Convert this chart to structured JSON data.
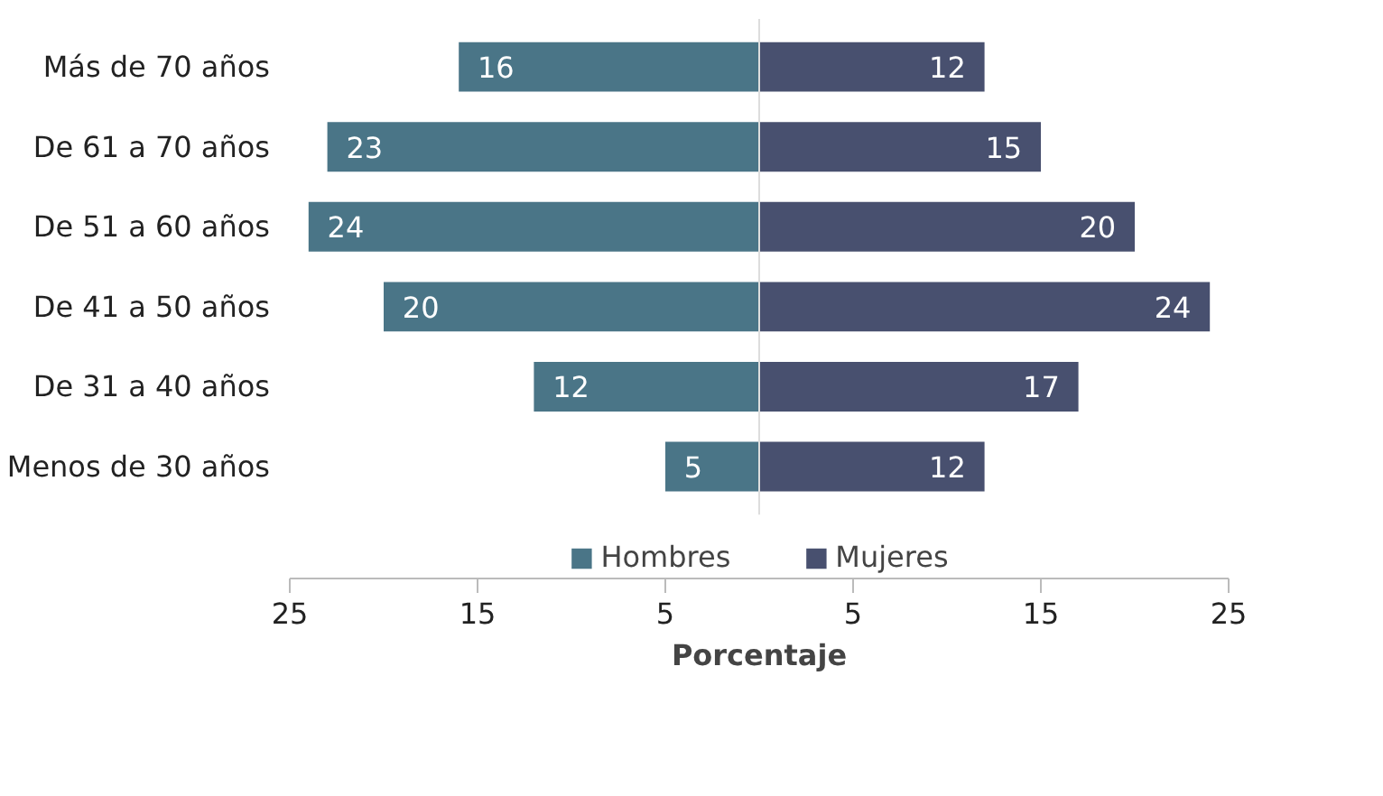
{
  "chart_data": {
    "type": "bar",
    "orientation": "horizontal",
    "xlabel": "Porcentaje",
    "categories": [
      "Más de 70 años",
      "De 61 a 70 años",
      "De 51 a 60 años",
      "De 41 a 50 años",
      "De 31 a 40 años",
      "Menos de 30 años"
    ],
    "series": [
      {
        "name": "Hombres",
        "color": "#4a7587",
        "base": [
          -16,
          -23,
          -24,
          -20,
          -12,
          -5
        ],
        "values": [
          16,
          23,
          24,
          20,
          12,
          5
        ],
        "data_labels": true
      },
      {
        "name": "Mujeres",
        "color": "#48506f",
        "values": [
          12,
          15,
          20,
          24,
          17,
          12
        ],
        "data_labels": true
      }
    ],
    "xlim": [
      -25,
      25
    ],
    "xticks": [
      {
        "value": -25,
        "label": "25"
      },
      {
        "value": -15,
        "label": "15"
      },
      {
        "value": -5,
        "label": "5"
      },
      5,
      15,
      25
    ],
    "legend": "bottom"
  }
}
